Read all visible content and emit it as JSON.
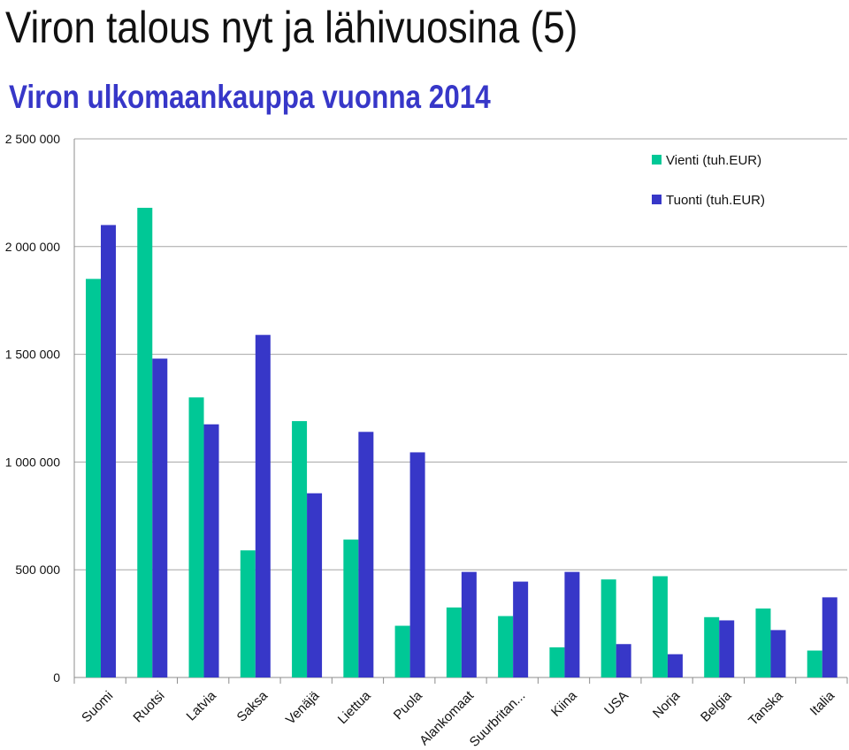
{
  "slide": {
    "title": "Viron talous nyt ja lähivuosina (5)"
  },
  "chart_data": {
    "type": "bar",
    "title": "Viron ulkomaankauppa vuonna 2014",
    "xlabel": "",
    "ylabel": "",
    "categories": [
      "Suomi",
      "Ruotsi",
      "Latvia",
      "Saksa",
      "Venäjä",
      "Liettua",
      "Puola",
      "Alankomaat",
      "Suurbritan...",
      "Kiina",
      "USA",
      "Norja",
      "Belgia",
      "Tanska",
      "Italia"
    ],
    "series": [
      {
        "name": "Vienti (tuh.EUR)",
        "color": "#00c896",
        "values": [
          1850000,
          2180000,
          1300000,
          590000,
          1190000,
          640000,
          240000,
          325000,
          285000,
          140000,
          455000,
          470000,
          280000,
          320000,
          125000
        ]
      },
      {
        "name": "Tuonti (tuh.EUR)",
        "color": "#3737c8",
        "values": [
          2100000,
          1480000,
          1175000,
          1590000,
          855000,
          1140000,
          1045000,
          490000,
          445000,
          490000,
          155000,
          108000,
          265000,
          220000,
          372000
        ]
      }
    ],
    "ylim": [
      0,
      2500000
    ],
    "yticks": [
      0,
      500000,
      1000000,
      1500000,
      2000000,
      2500000
    ],
    "ytick_labels": [
      "0",
      "500 000",
      "1 000 000",
      "1 500 000",
      "2 000 000",
      "2 500 000"
    ],
    "grid": true,
    "legend_position": "top-right"
  }
}
